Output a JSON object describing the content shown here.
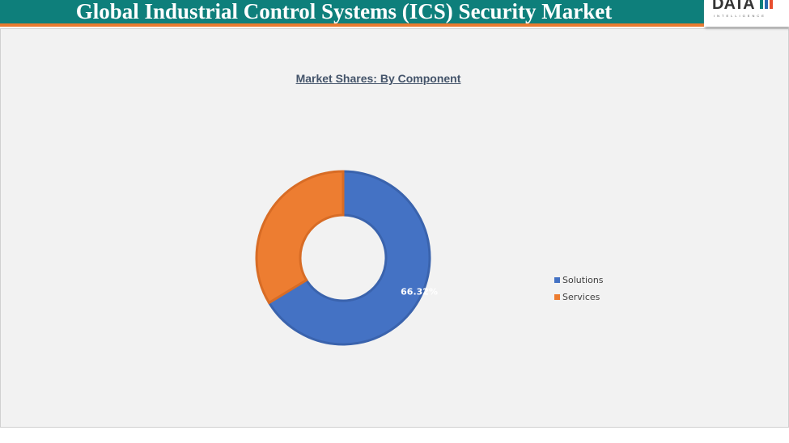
{
  "header": {
    "title": "Global Industrial Control Systems (ICS) Security Market",
    "logo_text": "DATA",
    "logo_subtext": "INTELLIGENCE"
  },
  "colors": {
    "header_bg": "#0e7f7b",
    "header_accent": "#e87a2f"
  },
  "chart_data": {
    "type": "pie",
    "variant": "donut",
    "title": "Market Shares: By Component",
    "categories": [
      "Solutions",
      "Services"
    ],
    "values": [
      66.32,
      33.68
    ],
    "colors": [
      "#4472c4",
      "#ed7d31"
    ],
    "data_labels": [
      "66.32%",
      ""
    ],
    "legend_position": "right"
  }
}
